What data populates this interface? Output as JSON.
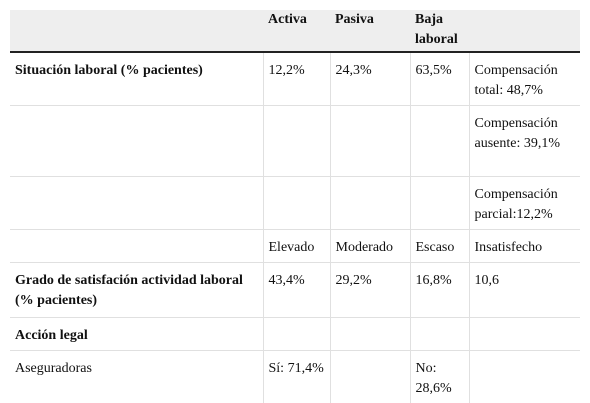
{
  "header": {
    "col0": "",
    "col1": "Activa",
    "col2": "Pasiva",
    "col3": "Baja laboral",
    "col4": ""
  },
  "rows": [
    {
      "label": "Situación laboral (% pacientes)",
      "c1": "12,2%",
      "c2": "24,3%",
      "c3": "63,5%",
      "c4": "Compensación total: 48,7%"
    },
    {
      "label": "",
      "c1": "",
      "c2": "",
      "c3": "",
      "c4": "Compensación ausente: 39,1%"
    },
    {
      "label": "",
      "c1": "",
      "c2": "",
      "c3": "",
      "c4": "Compensación parcial:12,2%"
    },
    {
      "label": "",
      "c1": "Elevado",
      "c2": "Moderado",
      "c3": "Escaso",
      "c4": "Insatisfecho"
    },
    {
      "label": "Grado de satisfación actividad laboral (% pacientes)",
      "c1": "43,4%",
      "c2": "29,2%",
      "c3": "16,8%",
      "c4": "10,6"
    },
    {
      "label": "Acción legal",
      "c1": "",
      "c2": "",
      "c3": "",
      "c4": ""
    },
    {
      "label": "Aseguradoras",
      "c1": "Sí: 71,4%",
      "c2": "",
      "c3": "No: 28,6%",
      "c4": ""
    }
  ]
}
